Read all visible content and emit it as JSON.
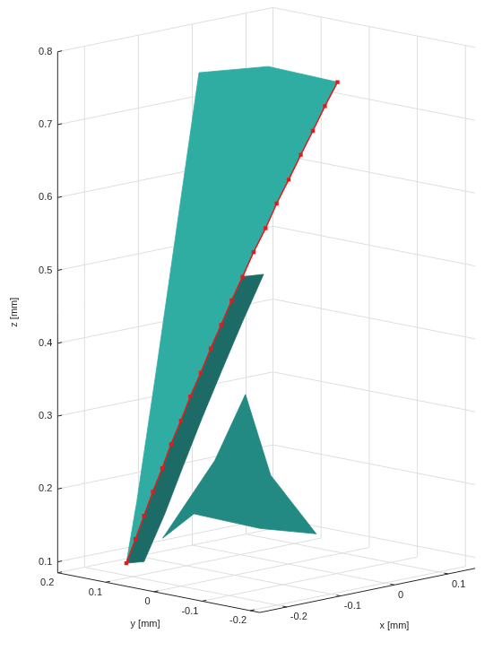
{
  "chart_data": {
    "type": "surface3d",
    "xlabel": "x [mm]",
    "ylabel": "y [mm]",
    "zlabel": "z [mm]",
    "xlim": [
      -0.25,
      0.15
    ],
    "ylim": [
      -0.22,
      0.2
    ],
    "zlim": [
      0.085,
      0.8
    ],
    "xticks": [
      -0.2,
      -0.1,
      0,
      0.1
    ],
    "yticks": [
      -0.2,
      -0.1,
      0,
      0.1,
      0.2
    ],
    "zticks": [
      0.1,
      0.2,
      0.3,
      0.4,
      0.5,
      0.6,
      0.7,
      0.8
    ],
    "grid": true,
    "surfaces": [
      {
        "color": "#238a83",
        "x": [
          -0.18,
          -0.11,
          -0.08,
          -0.06,
          -0.02,
          -0.08,
          -0.14
        ],
        "y": [
          0.06,
          0.03,
          0.0,
          -0.03,
          -0.08,
          -0.03,
          0.04
        ],
        "z": [
          0.14,
          0.24,
          0.33,
          0.22,
          0.14,
          0.15,
          0.17
        ]
      },
      {
        "color": "#1d6b66",
        "x": [
          -0.194,
          -0.182,
          -0.171,
          -0.159,
          -0.147,
          -0.135,
          -0.122,
          -0.109,
          -0.095,
          -0.081,
          -0.067,
          -0.052,
          -0.037,
          -0.007,
          -0.037,
          -0.065,
          -0.092,
          -0.117,
          -0.141,
          -0.17
        ],
        "y": [
          0.12,
          0.1145,
          0.109,
          0.104,
          0.098,
          0.093,
          0.087,
          0.082,
          0.076,
          0.071,
          0.065,
          0.06,
          0.054,
          0.044,
          0.055,
          0.066,
          0.077,
          0.088,
          0.099,
          0.11
        ],
        "z": [
          0.1,
          0.132,
          0.163,
          0.195,
          0.226,
          0.258,
          0.289,
          0.321,
          0.352,
          0.384,
          0.415,
          0.447,
          0.478,
          0.478,
          0.415,
          0.352,
          0.289,
          0.226,
          0.163,
          0.1
        ]
      },
      {
        "color": "#2fada3",
        "x": [
          -0.194,
          -0.182,
          -0.171,
          -0.159,
          -0.147,
          -0.135,
          -0.122,
          -0.109,
          -0.095,
          -0.081,
          -0.067,
          -0.052,
          -0.037,
          -0.021,
          -0.004,
          0.012,
          0.029,
          0.047,
          0.064,
          0.082,
          0.1,
          0.025,
          -0.05,
          -0.09,
          -0.13,
          -0.17
        ],
        "y": [
          0.12,
          0.1145,
          0.109,
          0.104,
          0.098,
          0.093,
          0.087,
          0.082,
          0.076,
          0.071,
          0.065,
          0.06,
          0.054,
          0.049,
          0.043,
          0.038,
          0.032,
          0.027,
          0.021,
          0.016,
          0.01,
          0.07,
          0.13,
          0.13,
          0.13,
          0.125
        ],
        "z": [
          0.1,
          0.132,
          0.163,
          0.195,
          0.226,
          0.258,
          0.289,
          0.321,
          0.352,
          0.384,
          0.415,
          0.447,
          0.478,
          0.51,
          0.541,
          0.573,
          0.604,
          0.636,
          0.667,
          0.699,
          0.73,
          0.755,
          0.75,
          0.55,
          0.35,
          0.18
        ]
      }
    ],
    "series": [
      {
        "color": "#e8191b",
        "marker": "square",
        "line_style": "solid",
        "x": [
          -0.194,
          -0.182,
          -0.171,
          -0.159,
          -0.147,
          -0.135,
          -0.122,
          -0.109,
          -0.095,
          -0.081,
          -0.067,
          -0.052,
          -0.037,
          -0.021,
          -0.004,
          0.012,
          0.029,
          0.047,
          0.064,
          0.082,
          0.1
        ],
        "y": [
          0.12,
          0.1145,
          0.109,
          0.104,
          0.098,
          0.093,
          0.087,
          0.082,
          0.076,
          0.071,
          0.065,
          0.06,
          0.054,
          0.049,
          0.043,
          0.038,
          0.032,
          0.027,
          0.021,
          0.016,
          0.01
        ],
        "z": [
          0.1,
          0.132,
          0.163,
          0.195,
          0.226,
          0.258,
          0.289,
          0.321,
          0.352,
          0.384,
          0.415,
          0.447,
          0.478,
          0.51,
          0.541,
          0.573,
          0.604,
          0.636,
          0.667,
          0.699,
          0.73
        ]
      }
    ]
  }
}
